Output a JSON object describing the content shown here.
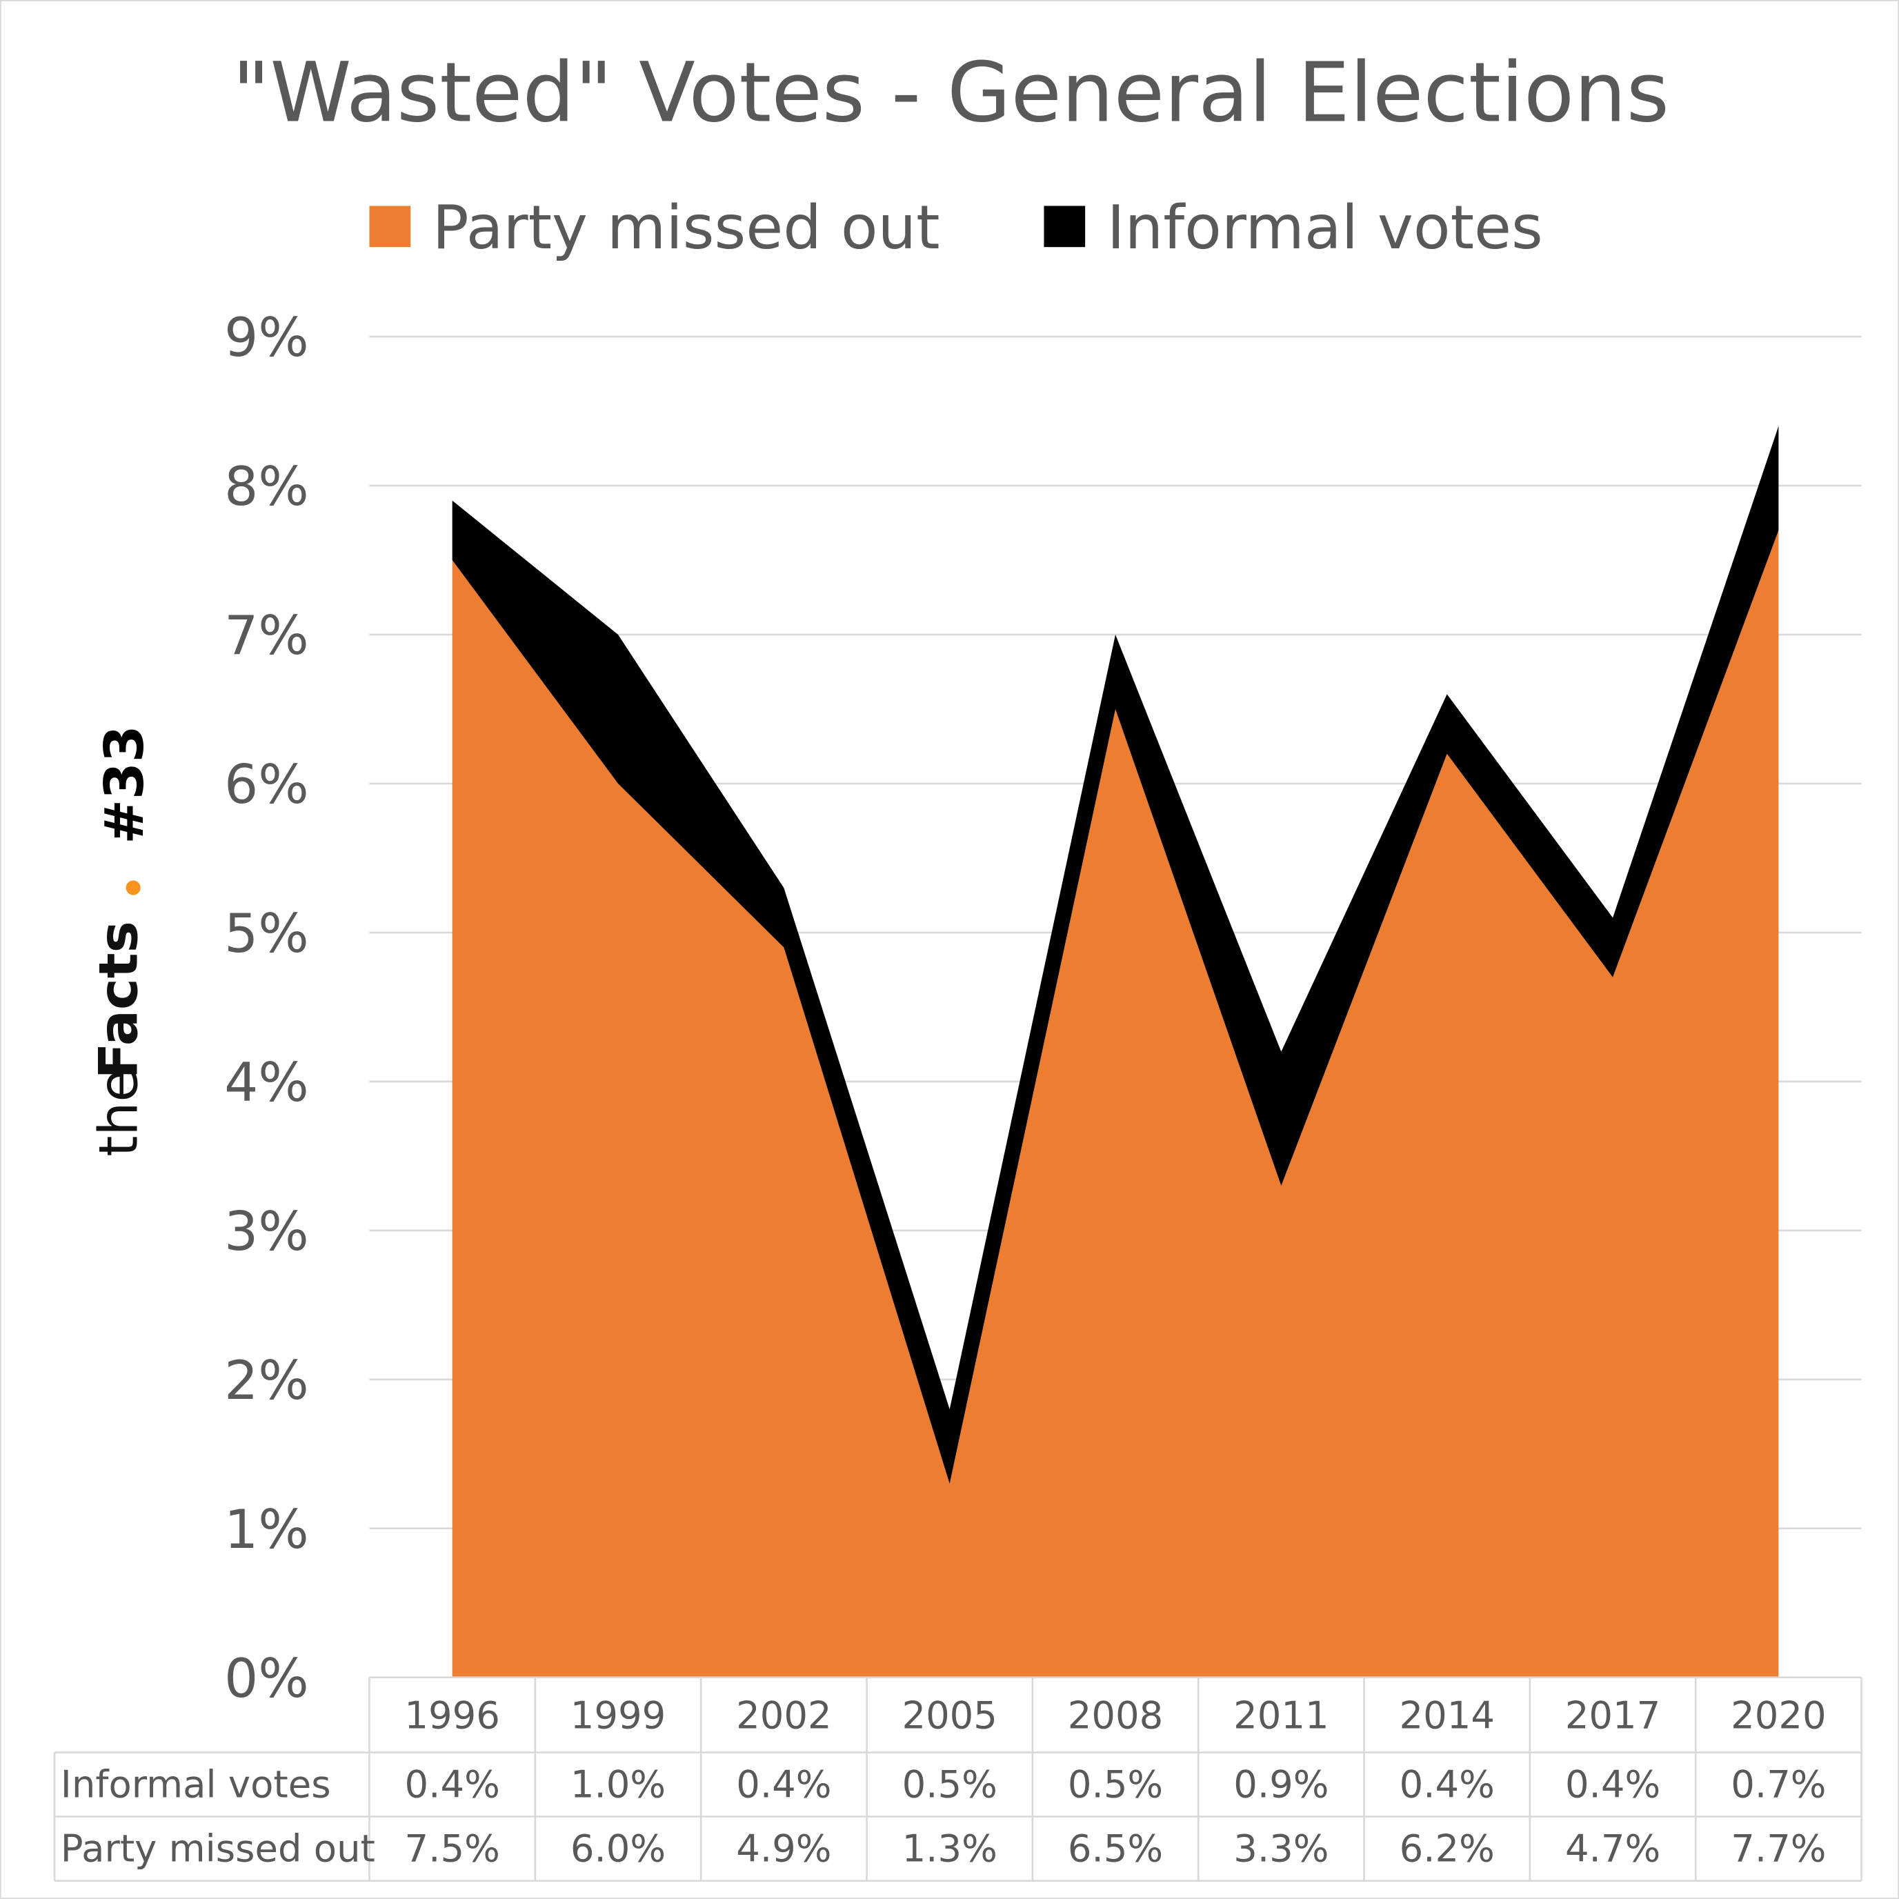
{
  "chart_data": {
    "type": "area",
    "stacked": true,
    "title": "\"Wasted\" Votes - General Elections",
    "categories": [
      "1996",
      "1999",
      "2002",
      "2005",
      "2008",
      "2011",
      "2014",
      "2017",
      "2020"
    ],
    "series": [
      {
        "name": "Party missed out",
        "color": "#ED7D31",
        "values": [
          7.5,
          6.0,
          4.9,
          1.3,
          6.5,
          3.3,
          6.2,
          4.7,
          7.7
        ],
        "labels": [
          "7.5%",
          "6.0%",
          "4.9%",
          "1.3%",
          "6.5%",
          "3.3%",
          "6.2%",
          "4.7%",
          "7.7%"
        ]
      },
      {
        "name": "Informal votes",
        "color": "#000000",
        "values": [
          0.4,
          1.0,
          0.4,
          0.5,
          0.5,
          0.9,
          0.4,
          0.4,
          0.7
        ],
        "labels": [
          "0.4%",
          "1.0%",
          "0.4%",
          "0.5%",
          "0.5%",
          "0.9%",
          "0.4%",
          "0.4%",
          "0.7%"
        ]
      }
    ],
    "ylim": [
      0,
      9
    ],
    "yticks": [
      "0%",
      "1%",
      "2%",
      "3%",
      "4%",
      "5%",
      "6%",
      "7%",
      "8%",
      "9%"
    ],
    "grid": true,
    "legend": "top",
    "data_table": true
  },
  "logo": {
    "text_light": "the",
    "text_bold": "Facts",
    "issue": "#33",
    "dot_color": "#F7931E"
  }
}
